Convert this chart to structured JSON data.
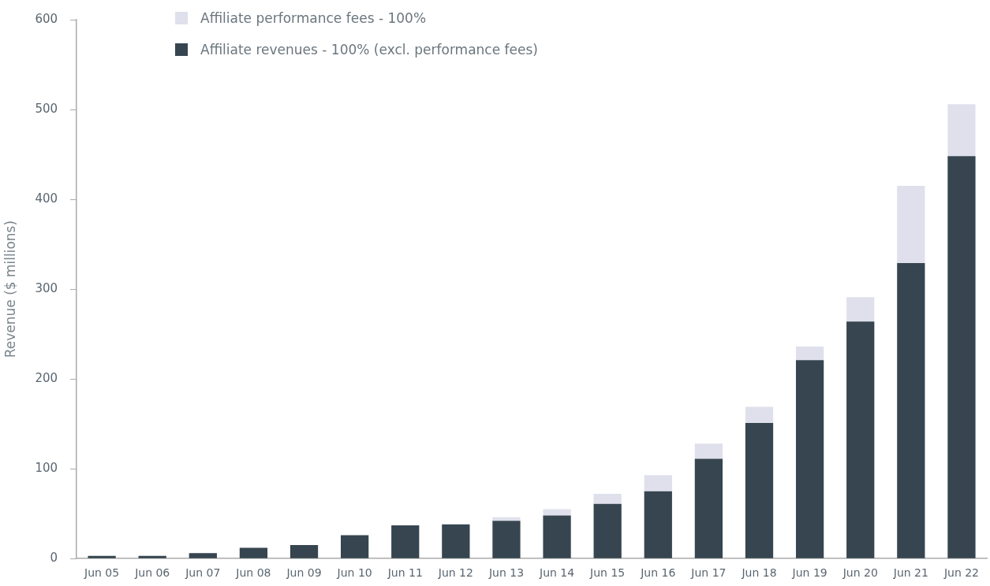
{
  "chart_data": {
    "type": "bar",
    "stacked": true,
    "ylabel": "Revenue ($ millions)",
    "categories": [
      "Jun 05",
      "Jun 06",
      "Jun 07",
      "Jun 08",
      "Jun 09",
      "Jun 10",
      "Jun 11",
      "Jun 12",
      "Jun 13",
      "Jun 14",
      "Jun 15",
      "Jun 16",
      "Jun 17",
      "Jun 18",
      "Jun 19",
      "Jun 20",
      "Jun 21",
      "Jun 22"
    ],
    "series": [
      {
        "name": "Affiliate revenues - 100% (excl. performance fees)",
        "color": "#36454f",
        "values": [
          3,
          3,
          6,
          12,
          15,
          26,
          37,
          38,
          42,
          48,
          61,
          75,
          111,
          151,
          221,
          264,
          329,
          448
        ]
      },
      {
        "name": "Affiliate performance fees - 100%",
        "color": "#dfe0ec",
        "values": [
          0,
          0,
          0,
          0,
          0,
          null,
          0,
          0,
          4,
          7,
          11,
          18,
          17,
          18,
          15,
          27,
          86,
          58
        ]
      }
    ],
    "ylim": [
      0,
      600
    ],
    "yticks": [
      0,
      100,
      200,
      300,
      400,
      500,
      600
    ],
    "grid": false,
    "legend": "top left"
  }
}
